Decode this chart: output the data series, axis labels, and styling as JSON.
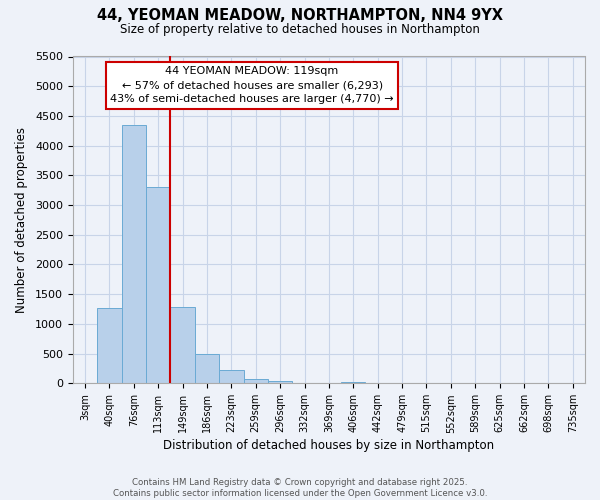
{
  "title": "44, YEOMAN MEADOW, NORTHAMPTON, NN4 9YX",
  "subtitle": "Size of property relative to detached houses in Northampton",
  "xlabel": "Distribution of detached houses by size in Northampton",
  "ylabel": "Number of detached properties",
  "bar_color": "#b8d0ea",
  "bar_edge_color": "#6aaad4",
  "background_color": "#eef2f9",
  "grid_color": "#c8d4e8",
  "vline_index": 3,
  "vline_color": "#cc0000",
  "bin_labels": [
    "3sqm",
    "40sqm",
    "76sqm",
    "113sqm",
    "149sqm",
    "186sqm",
    "223sqm",
    "259sqm",
    "296sqm",
    "332sqm",
    "369sqm",
    "406sqm",
    "442sqm",
    "479sqm",
    "515sqm",
    "552sqm",
    "589sqm",
    "625sqm",
    "662sqm",
    "698sqm",
    "735sqm"
  ],
  "bar_heights": [
    0,
    1270,
    4350,
    3300,
    1280,
    500,
    230,
    80,
    35,
    0,
    0,
    15,
    0,
    0,
    0,
    0,
    0,
    0,
    0,
    10,
    0
  ],
  "ylim": [
    0,
    5500
  ],
  "yticks": [
    0,
    500,
    1000,
    1500,
    2000,
    2500,
    3000,
    3500,
    4000,
    4500,
    5000,
    5500
  ],
  "annotation_title": "44 YEOMAN MEADOW: 119sqm",
  "annotation_line1": "← 57% of detached houses are smaller (6,293)",
  "annotation_line2": "43% of semi-detached houses are larger (4,770) →",
  "annotation_box_color": "#ffffff",
  "annotation_box_edge": "#cc0000",
  "footer_line1": "Contains HM Land Registry data © Crown copyright and database right 2025.",
  "footer_line2": "Contains public sector information licensed under the Open Government Licence v3.0."
}
